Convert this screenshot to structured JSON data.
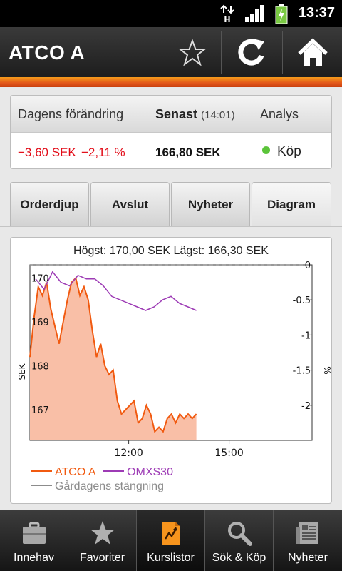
{
  "status": {
    "time": "13:37",
    "network_label": "H"
  },
  "appbar": {
    "title": "ATCO A"
  },
  "summary": {
    "change_header": "Dagens förändring",
    "latest_header": "Senast",
    "latest_time": "(14:01)",
    "analysis_header": "Analys",
    "change_sek": "−3,60 SEK",
    "change_pct": "−2,11 %",
    "latest_value": "166,80 SEK",
    "analysis_value": "Köp",
    "colors": {
      "negative": "#e20a16",
      "positive_dot": "#5bc43a"
    }
  },
  "tabs": [
    {
      "label": "Orderdjup"
    },
    {
      "label": "Avslut"
    },
    {
      "label": "Nyheter"
    },
    {
      "label": "Diagram"
    }
  ],
  "chart_title": "Högst: 170,00 SEK Lägst: 166,30 SEK",
  "chart_data": {
    "type": "area",
    "y_left_label": "SEK",
    "y_right_label": "%",
    "y_left_ticks": [
      "170",
      "169",
      "168",
      "167"
    ],
    "y_right_ticks": [
      "0",
      "-0.5",
      "-1",
      "-1.5",
      "-2"
    ],
    "x_ticks": [
      "12:00",
      "15:00"
    ],
    "ylim_left": [
      166.3,
      170.3
    ],
    "ylim_right": [
      -2.5,
      0
    ],
    "series": [
      {
        "name": "ATCO A",
        "color": "#f15a10",
        "fill": "#f9bfa7",
        "axis": "left",
        "values": [
          168.2,
          169.1,
          169.8,
          169.6,
          169.9,
          169.3,
          168.9,
          168.5,
          169.0,
          169.5,
          169.9,
          170.0,
          169.6,
          169.8,
          169.5,
          168.8,
          168.2,
          168.5,
          168.0,
          167.8,
          167.9,
          167.2,
          166.9,
          167.0,
          167.1,
          167.2,
          166.7,
          166.8,
          167.1,
          166.9,
          166.5,
          166.6,
          166.5,
          166.8,
          166.9,
          166.7,
          166.9,
          166.8,
          166.9,
          166.8,
          166.9
        ]
      },
      {
        "name": "OMXS30",
        "color": "#9d3bb5",
        "axis": "right",
        "values": [
          -0.2,
          -0.35,
          -0.1,
          -0.25,
          -0.3,
          -0.15,
          -0.2,
          -0.2,
          -0.3,
          -0.45,
          -0.5,
          -0.55,
          -0.6,
          -0.65,
          -0.6,
          -0.5,
          -0.45,
          -0.55,
          -0.6,
          -0.65
        ]
      },
      {
        "name": "Gårdagens stängning",
        "color": "#8c8c8c",
        "axis": "right",
        "values": [
          0,
          0
        ]
      }
    ],
    "legend": [
      "ATCO A",
      "OMXS30",
      "Gårdagens stängning"
    ]
  },
  "bottomnav": [
    {
      "label": "Innehav",
      "icon": "briefcase-icon"
    },
    {
      "label": "Favoriter",
      "icon": "star-icon"
    },
    {
      "label": "Kurslistor",
      "icon": "chart-document-icon"
    },
    {
      "label": "Sök & Köp",
      "icon": "magnifier-icon"
    },
    {
      "label": "Nyheter",
      "icon": "newspaper-icon"
    }
  ]
}
